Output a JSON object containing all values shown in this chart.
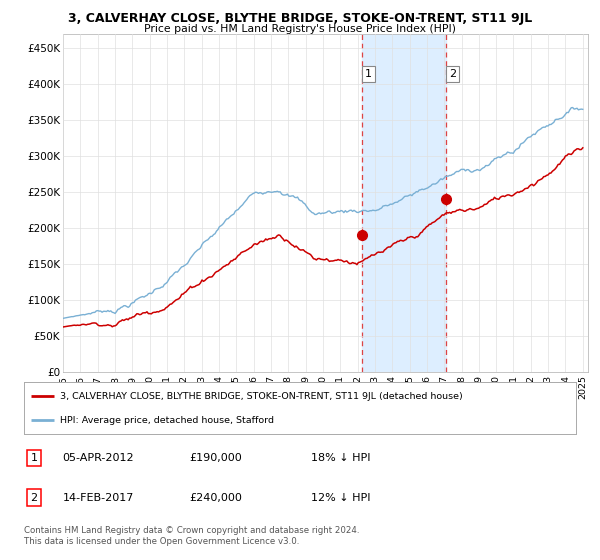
{
  "title": "3, CALVERHAY CLOSE, BLYTHE BRIDGE, STOKE-ON-TRENT, ST11 9JL",
  "subtitle": "Price paid vs. HM Land Registry's House Price Index (HPI)",
  "ylabel_ticks": [
    "£0",
    "£50K",
    "£100K",
    "£150K",
    "£200K",
    "£250K",
    "£300K",
    "£350K",
    "£400K",
    "£450K"
  ],
  "ytick_values": [
    0,
    50000,
    100000,
    150000,
    200000,
    250000,
    300000,
    350000,
    400000,
    450000
  ],
  "ylim": [
    0,
    470000
  ],
  "xlim_start": 1995.0,
  "xlim_end": 2025.3,
  "hpi_color": "#7ab0d4",
  "price_color": "#cc0000",
  "legend_label_price": "3, CALVERHAY CLOSE, BLYTHE BRIDGE, STOKE-ON-TRENT, ST11 9JL (detached house)",
  "legend_label_hpi": "HPI: Average price, detached house, Stafford",
  "sale1_x": 2012.27,
  "sale1_y": 190000,
  "sale2_x": 2017.12,
  "sale2_y": 240000,
  "table_rows": [
    [
      "1",
      "05-APR-2012",
      "£190,000",
      "18% ↓ HPI"
    ],
    [
      "2",
      "14-FEB-2017",
      "£240,000",
      "12% ↓ HPI"
    ]
  ],
  "footer_text": "Contains HM Land Registry data © Crown copyright and database right 2024.\nThis data is licensed under the Open Government Licence v3.0.",
  "background_color": "#ffffff",
  "grid_color": "#e0e0e0",
  "highlight_color": "#ddeeff",
  "dashed_line_color": "#dd4444"
}
